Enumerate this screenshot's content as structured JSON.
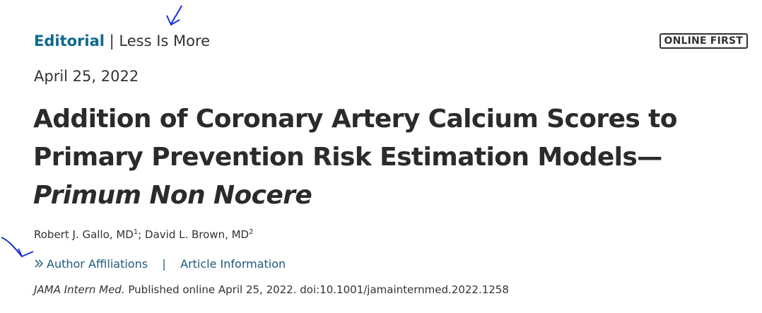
{
  "header": {
    "section": "Editorial",
    "separator": "|",
    "series": "Less Is More",
    "badge": "ONLINE FIRST"
  },
  "date": "April 25, 2022",
  "title": {
    "lines": [
      "Addition of Coronary Artery Calcium Scores to",
      "Primary Prevention Risk Estimation Models—"
    ],
    "subtitle": "Primum Non Nocere"
  },
  "authors": {
    "list": [
      {
        "name": "Robert J. Gallo, MD",
        "affiliation": "1"
      },
      {
        "name": "David L. Brown, MD",
        "affiliation": "2"
      }
    ],
    "separator": ";"
  },
  "links": {
    "items": [
      "Author Affiliations",
      "Article Information"
    ],
    "separator": "|"
  },
  "citation": {
    "journal": "JAMA Intern Med.",
    "text": "Published online April 25, 2022. doi:10.1001/jamainternmed.2022.1258"
  }
}
